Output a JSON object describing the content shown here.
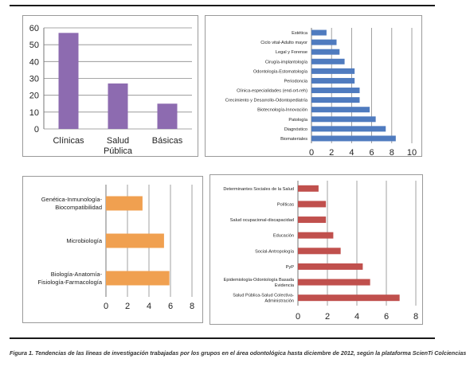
{
  "caption": "Figura 1. Tendencias de las líneas de investigación trabajadas por los grupos en el área odontológica hasta diciembre de 2012, según la plataforma ScienTi Colciencias",
  "chart_data": [
    {
      "type": "bar",
      "orientation": "vertical",
      "categories": [
        "Clínicas",
        "Salud Pública",
        "Básicas"
      ],
      "values": [
        57,
        27,
        15
      ],
      "ylim": [
        0,
        60
      ],
      "yticks": [
        0,
        10,
        20,
        30,
        40,
        50,
        60
      ],
      "grid": true,
      "color": "#8d6bb0"
    },
    {
      "type": "bar",
      "orientation": "horizontal",
      "categories": [
        "Estética",
        "Ciclo vital-Adulto mayor",
        "Legal y Forense",
        "Cirugía-implantología",
        "Odontología-Estomatología",
        "Periodoncia",
        "Clínica-especialidades (end-ort-reh)",
        "Crecimiento y Desarrollo-Odontopediatría",
        "Biotecnología-Innovación",
        "Patología",
        "Diagnóstico",
        "Biomateriales"
      ],
      "values": [
        1.5,
        2.5,
        2.8,
        3.3,
        4.3,
        4.3,
        4.8,
        4.8,
        5.8,
        6.4,
        7.4,
        8.4
      ],
      "xlim": [
        0,
        10
      ],
      "xticks": [
        0,
        2,
        4,
        6,
        8,
        10
      ],
      "grid": true,
      "color": "#4f7bbf"
    },
    {
      "type": "bar",
      "orientation": "horizontal",
      "categories": [
        "Genética-Inmunología-Biocompatibilidad",
        "Microbiología",
        "Biología-Anatomía-Fisiología-Farmacología"
      ],
      "values": [
        3.4,
        5.4,
        5.9
      ],
      "xlim": [
        0,
        8
      ],
      "xticks": [
        0,
        2,
        4,
        6,
        8
      ],
      "grid": true,
      "color": "#f0a050"
    },
    {
      "type": "bar",
      "orientation": "horizontal",
      "categories": [
        "Determinantes Sociales de la Salud",
        "Políticas",
        "Salud ocupacional-discapacidad",
        "Educación",
        "Social-Antropología",
        "PyP",
        "Epidemiología-Odontología Basada Evidencia",
        "Salud Pública-Salud Colectiva-Administración"
      ],
      "values": [
        1.4,
        1.9,
        1.9,
        2.4,
        2.9,
        4.4,
        4.9,
        6.9
      ],
      "xlim": [
        0,
        8
      ],
      "xticks": [
        0,
        2,
        4,
        6,
        8
      ],
      "grid": true,
      "color": "#c0504d"
    }
  ]
}
